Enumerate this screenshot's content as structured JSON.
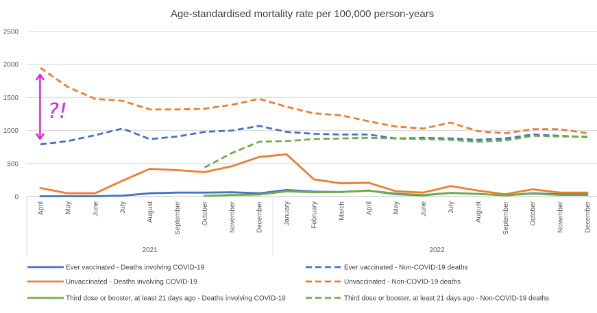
{
  "chart_data": {
    "type": "line",
    "title": "Age-standardised mortality rate per 100,000 person-years",
    "xlabel": "",
    "ylabel": "",
    "ylim": [
      0,
      2500
    ],
    "yticks": [
      0,
      500,
      1000,
      1500,
      2000,
      2500
    ],
    "categories": [
      "April",
      "May",
      "June",
      "July",
      "August",
      "September",
      "October",
      "November",
      "December",
      "January",
      "February",
      "March",
      "April",
      "May",
      "June",
      "July",
      "August",
      "September",
      "October",
      "November",
      "December"
    ],
    "year_groups": [
      {
        "label": "2021",
        "start": 0,
        "end": 8
      },
      {
        "label": "2022",
        "start": 9,
        "end": 20
      }
    ],
    "grid": "horizontal",
    "legend_position": "bottom",
    "series": [
      {
        "name": "Ever vaccinated -  Deaths involving COVID-19",
        "color": "#4472C4",
        "dash": false,
        "values": [
          5,
          5,
          5,
          15,
          50,
          60,
          60,
          65,
          50,
          100,
          75,
          70,
          90,
          35,
          20,
          55,
          40,
          20,
          50,
          35,
          35
        ]
      },
      {
        "name": "Ever vaccinated -  Non-COVID-19 deaths",
        "color": "#4472C4",
        "dash": true,
        "values": [
          790,
          840,
          930,
          1030,
          870,
          910,
          980,
          1000,
          1070,
          980,
          950,
          940,
          940,
          880,
          890,
          880,
          860,
          880,
          940,
          920,
          900
        ]
      },
      {
        "name": "Unvaccinated -  Deaths involving COVID-19",
        "color": "#ED7D31",
        "dash": false,
        "values": [
          130,
          50,
          50,
          240,
          420,
          400,
          370,
          460,
          600,
          640,
          260,
          200,
          210,
          80,
          60,
          160,
          90,
          35,
          110,
          60,
          60
        ]
      },
      {
        "name": "Unvaccinated -  Non-COVID-19 deaths",
        "color": "#ED7D31",
        "dash": true,
        "values": [
          1950,
          1660,
          1480,
          1450,
          1320,
          1320,
          1330,
          1390,
          1480,
          1360,
          1260,
          1230,
          1140,
          1060,
          1030,
          1120,
          990,
          960,
          1020,
          1020,
          960
        ]
      },
      {
        "name": "Third dose or booster, at least 21 days ago - Deaths involving COVID-19",
        "color": "#70AD47",
        "dash": false,
        "values": [
          null,
          null,
          null,
          null,
          null,
          null,
          10,
          25,
          30,
          80,
          65,
          70,
          90,
          45,
          25,
          55,
          40,
          20,
          45,
          25,
          25
        ]
      },
      {
        "name": "Third dose or booster, at least 21 days ago - Non-COVID-19 deaths",
        "color": "#70AD47",
        "dash": true,
        "values": [
          null,
          null,
          null,
          null,
          null,
          null,
          440,
          660,
          830,
          840,
          870,
          880,
          890,
          880,
          870,
          860,
          830,
          850,
          920,
          910,
          910
        ]
      }
    ],
    "annotations": {
      "symbol": "?!",
      "color": "#E020E0"
    }
  }
}
